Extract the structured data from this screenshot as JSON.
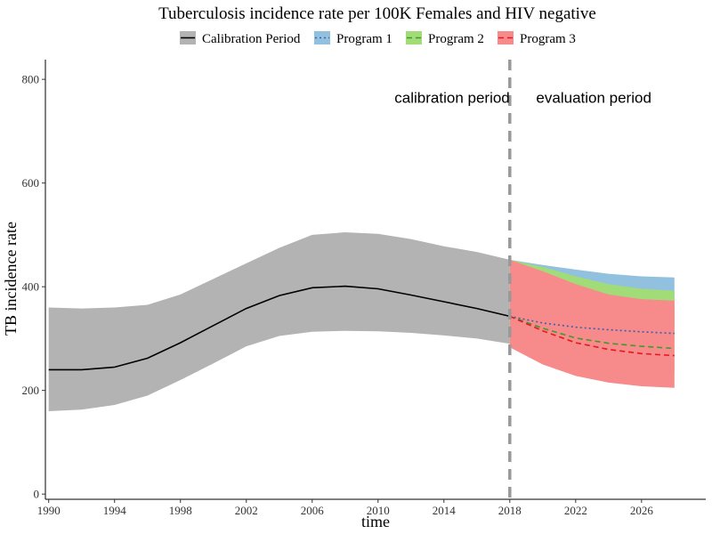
{
  "chart_data": {
    "type": "line",
    "title": "Tuberculosis incidence rate per 100K Females and HIV negative",
    "xlabel": "time",
    "ylabel": "TB incidence rate",
    "xlim": [
      1989.8,
      2029.9
    ],
    "ylim": [
      -10,
      838
    ],
    "x_ticks": [
      1990,
      1994,
      1998,
      2002,
      2006,
      2010,
      2014,
      2018,
      2022,
      2026
    ],
    "y_ticks": [
      0,
      200,
      400,
      600,
      800
    ],
    "grid": false,
    "legend_position": "top",
    "legend": [
      {
        "name": "Calibration Period",
        "color": "#b3b3b3",
        "line_color": "#000000",
        "dash": "solid"
      },
      {
        "name": "Program 1",
        "color": "#92c1df",
        "line_color": "#3b5fb5",
        "dash": "dotted"
      },
      {
        "name": "Program 2",
        "color": "#a1dc78",
        "line_color": "#3f9a2b",
        "dash": "dashed"
      },
      {
        "name": "Program 3",
        "color": "#f78a8a",
        "line_color": "#e41a1c",
        "dash": "dashed"
      }
    ],
    "annotations": [
      {
        "text": "calibration period",
        "x": 2014.5,
        "y": 755
      },
      {
        "text": "evaluation period",
        "x": 2023.1,
        "y": 755
      }
    ],
    "vline": {
      "x": 2018,
      "color": "#999999"
    },
    "calibration": {
      "x": [
        1990,
        1992,
        1994,
        1996,
        1998,
        2000,
        2002,
        2004,
        2006,
        2008,
        2010,
        2012,
        2014,
        2016,
        2018
      ],
      "mean": [
        240,
        240,
        245,
        262,
        292,
        325,
        358,
        383,
        398,
        401,
        396,
        384,
        371,
        358,
        343
      ],
      "lower": [
        160,
        163,
        172,
        190,
        220,
        252,
        285,
        305,
        313,
        315,
        314,
        311,
        306,
        300,
        290
      ],
      "upper": [
        360,
        358,
        360,
        365,
        385,
        415,
        445,
        475,
        500,
        505,
        502,
        492,
        478,
        467,
        452
      ]
    },
    "series": [
      {
        "name": "Program 1",
        "x": [
          2018,
          2020,
          2022,
          2024,
          2026,
          2028
        ],
        "mean": [
          343,
          330,
          322,
          317,
          313,
          310
        ],
        "lower": [
          290,
          295,
          300,
          303,
          306,
          308
        ],
        "upper": [
          452,
          442,
          433,
          425,
          420,
          418
        ]
      },
      {
        "name": "Program 2",
        "x": [
          2018,
          2020,
          2022,
          2024,
          2026,
          2028
        ],
        "mean": [
          343,
          320,
          301,
          291,
          285,
          281
        ],
        "lower": [
          285,
          265,
          252,
          244,
          239,
          236
        ],
        "upper": [
          452,
          438,
          420,
          405,
          396,
          392
        ]
      },
      {
        "name": "Program 3",
        "x": [
          2018,
          2020,
          2022,
          2024,
          2026,
          2028
        ],
        "mean": [
          343,
          315,
          292,
          279,
          271,
          267
        ],
        "lower": [
          283,
          250,
          228,
          215,
          208,
          205
        ],
        "upper": [
          452,
          430,
          405,
          385,
          376,
          373
        ]
      }
    ]
  }
}
